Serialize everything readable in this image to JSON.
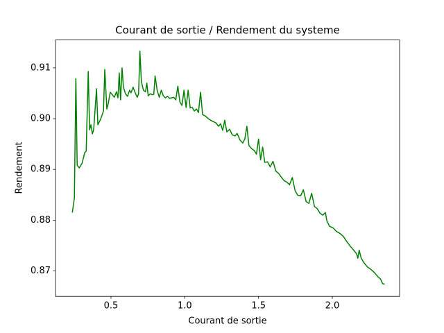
{
  "chart_data": {
    "type": "line",
    "title": "Courant de sortie / Rendement du systeme",
    "x_label": "Courant de sortie",
    "y_label": "Rendement",
    "x": [
      0.238,
      0.252,
      0.262,
      0.271,
      0.285,
      0.304,
      0.322,
      0.332,
      0.346,
      0.355,
      0.364,
      0.374,
      0.383,
      0.402,
      0.411,
      0.43,
      0.449,
      0.458,
      0.472,
      0.481,
      0.495,
      0.509,
      0.523,
      0.537,
      0.547,
      0.556,
      0.565,
      0.575,
      0.584,
      0.598,
      0.612,
      0.626,
      0.636,
      0.65,
      0.664,
      0.678,
      0.687,
      0.696,
      0.706,
      0.72,
      0.734,
      0.743,
      0.752,
      0.766,
      0.78,
      0.79,
      0.799,
      0.813,
      0.827,
      0.841,
      0.855,
      0.869,
      0.883,
      0.897,
      0.911,
      0.925,
      0.939,
      0.953,
      0.967,
      0.981,
      0.995,
      1.009,
      1.023,
      1.037,
      1.051,
      1.065,
      1.079,
      1.093,
      1.107,
      1.121,
      1.14,
      1.164,
      1.187,
      1.21,
      1.229,
      1.243,
      1.257,
      1.271,
      1.285,
      1.304,
      1.322,
      1.341,
      1.355,
      1.374,
      1.393,
      1.407,
      1.421,
      1.435,
      1.453,
      1.472,
      1.486,
      1.5,
      1.514,
      1.528,
      1.542,
      1.561,
      1.579,
      1.598,
      1.617,
      1.636,
      1.654,
      1.673,
      1.692,
      1.71,
      1.729,
      1.748,
      1.766,
      1.785,
      1.804,
      1.822,
      1.841,
      1.86,
      1.879,
      1.897,
      1.916,
      1.935,
      1.953,
      1.963,
      1.981,
      2.005,
      2.028,
      2.051,
      2.075,
      2.098,
      2.121,
      2.145,
      2.164,
      2.173,
      2.182,
      2.196,
      2.215,
      2.238,
      2.262,
      2.285,
      2.308,
      2.327,
      2.341,
      2.355
    ],
    "series": [
      {
        "color": "#008000",
        "values": [
          0.8815,
          0.8844,
          0.9079,
          0.8908,
          0.8903,
          0.8912,
          0.8933,
          0.8936,
          0.9093,
          0.8978,
          0.8988,
          0.897,
          0.8979,
          0.9059,
          0.8988,
          0.8999,
          0.9015,
          0.9097,
          0.9019,
          0.9029,
          0.9052,
          0.9047,
          0.9042,
          0.9053,
          0.9041,
          0.909,
          0.9037,
          0.91,
          0.9063,
          0.9049,
          0.9044,
          0.9056,
          0.9051,
          0.9062,
          0.9051,
          0.9042,
          0.9049,
          0.9133,
          0.9073,
          0.9056,
          0.9053,
          0.907,
          0.9045,
          0.9049,
          0.9047,
          0.9048,
          0.9084,
          0.9056,
          0.9042,
          0.9056,
          0.9045,
          0.9041,
          0.9044,
          0.904,
          0.9041,
          0.9042,
          0.9037,
          0.9064,
          0.9033,
          0.9026,
          0.9056,
          0.9022,
          0.9056,
          0.9021,
          0.9022,
          0.9015,
          0.9019,
          0.9012,
          0.9052,
          0.9008,
          0.9005,
          0.8999,
          0.8995,
          0.8992,
          0.8985,
          0.899,
          0.8977,
          0.8997,
          0.8974,
          0.8979,
          0.8968,
          0.8966,
          0.8971,
          0.8958,
          0.8952,
          0.896,
          0.8985,
          0.8947,
          0.8941,
          0.8937,
          0.893,
          0.896,
          0.8919,
          0.8944,
          0.8914,
          0.8915,
          0.8905,
          0.8916,
          0.8897,
          0.8892,
          0.8885,
          0.8878,
          0.8875,
          0.887,
          0.8884,
          0.8858,
          0.8849,
          0.8848,
          0.886,
          0.8837,
          0.8833,
          0.8853,
          0.8827,
          0.8823,
          0.8814,
          0.881,
          0.8815,
          0.8799,
          0.8788,
          0.8785,
          0.8778,
          0.8774,
          0.8768,
          0.8758,
          0.8749,
          0.8741,
          0.8734,
          0.8725,
          0.8741,
          0.8725,
          0.8716,
          0.8708,
          0.8703,
          0.8697,
          0.8689,
          0.8684,
          0.8675,
          0.8674
        ]
      }
    ],
    "xlim": [
      0.124,
      2.456
    ],
    "xticks": [
      0.5,
      {
        "value": 1,
        "label": "1.0"
      },
      1.5,
      {
        "value": 2,
        "label": "2.0"
      }
    ],
    "ylim": [
      0.865,
      0.9155
    ],
    "yticks": [
      0.87,
      0.88,
      0.89,
      {
        "value": 0.9,
        "label": "0.90"
      },
      0.91
    ]
  }
}
